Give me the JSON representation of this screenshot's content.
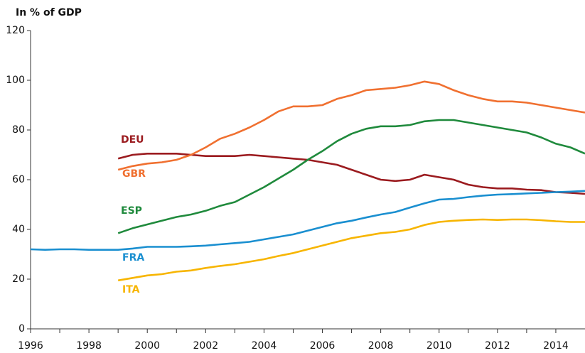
{
  "chart_data": {
    "type": "line",
    "title": "In % of GDP",
    "x": [
      1996,
      1996.5,
      1997,
      1997.5,
      1998,
      1998.5,
      1999,
      1999.5,
      2000,
      2000.5,
      2001,
      2001.5,
      2002,
      2002.5,
      2003,
      2003.5,
      2004,
      2004.5,
      2005,
      2005.5,
      2006,
      2006.5,
      2007,
      2007.5,
      2008,
      2008.5,
      2009,
      2009.5,
      2010,
      2010.5,
      2011,
      2011.5,
      2012,
      2012.5,
      2013,
      2013.5,
      2014,
      2014.5,
      2015
    ],
    "series": [
      {
        "name": "DEU",
        "color": "#9b1b1f",
        "values": [
          null,
          null,
          null,
          null,
          null,
          null,
          68.5,
          70,
          70.5,
          70.5,
          70.5,
          70,
          69.5,
          69.5,
          69.5,
          70,
          69.5,
          69,
          68.5,
          68,
          67,
          66,
          64,
          62,
          60,
          59.5,
          60,
          62,
          61,
          60,
          58,
          57,
          56.5,
          56.5,
          56,
          55.8,
          55,
          54.7,
          54.3
        ]
      },
      {
        "name": "GBR",
        "color": "#f07030",
        "values": [
          null,
          null,
          null,
          null,
          null,
          null,
          64,
          65.5,
          66.5,
          67,
          68,
          70,
          73,
          76.5,
          78.5,
          81,
          84,
          87.5,
          89.5,
          89.5,
          90,
          92.5,
          94,
          96,
          96.5,
          97,
          98,
          99.5,
          98.5,
          96,
          94,
          92.5,
          91.5,
          91.5,
          91,
          90,
          89,
          88,
          87
        ]
      },
      {
        "name": "ESP",
        "color": "#1f8a3c",
        "values": [
          null,
          null,
          null,
          null,
          null,
          null,
          38.5,
          40.5,
          42,
          43.5,
          45,
          46,
          47.5,
          49.5,
          51,
          54,
          57,
          60.5,
          64,
          68,
          71.5,
          75.5,
          78.5,
          80.5,
          81.5,
          81.5,
          82,
          83.5,
          84,
          84,
          83,
          82,
          81,
          80,
          79,
          77,
          74.5,
          73,
          70.5
        ]
      },
      {
        "name": "FRA",
        "color": "#1a8fd0",
        "values": [
          32,
          31.8,
          32,
          32,
          31.8,
          31.8,
          31.8,
          32.3,
          33,
          33,
          33,
          33.2,
          33.5,
          34,
          34.5,
          35,
          36,
          37,
          38,
          39.5,
          41,
          42.5,
          43.5,
          44.8,
          46,
          47,
          48.8,
          50.5,
          52,
          52.3,
          53,
          53.6,
          54,
          54.2,
          54.5,
          54.7,
          55,
          55.2,
          55.5
        ]
      },
      {
        "name": "ITA",
        "color": "#f7b500",
        "values": [
          null,
          null,
          null,
          null,
          null,
          null,
          19.5,
          20.5,
          21.5,
          22,
          23,
          23.5,
          24.5,
          25.3,
          26,
          27,
          28,
          29.3,
          30.5,
          32,
          33.5,
          35,
          36.5,
          37.5,
          38.5,
          39,
          40,
          41.8,
          43,
          43.5,
          43.8,
          44,
          43.8,
          44,
          44,
          43.7,
          43.3,
          43,
          43
        ]
      }
    ],
    "xlim": [
      1996,
      2015
    ],
    "xticks": [
      1996,
      1998,
      2000,
      2002,
      2004,
      2006,
      2008,
      2010,
      2012,
      2014
    ],
    "ylim": [
      0,
      120
    ],
    "yticks": [
      0,
      20,
      40,
      60,
      80,
      100,
      120
    ],
    "grid": false
  }
}
